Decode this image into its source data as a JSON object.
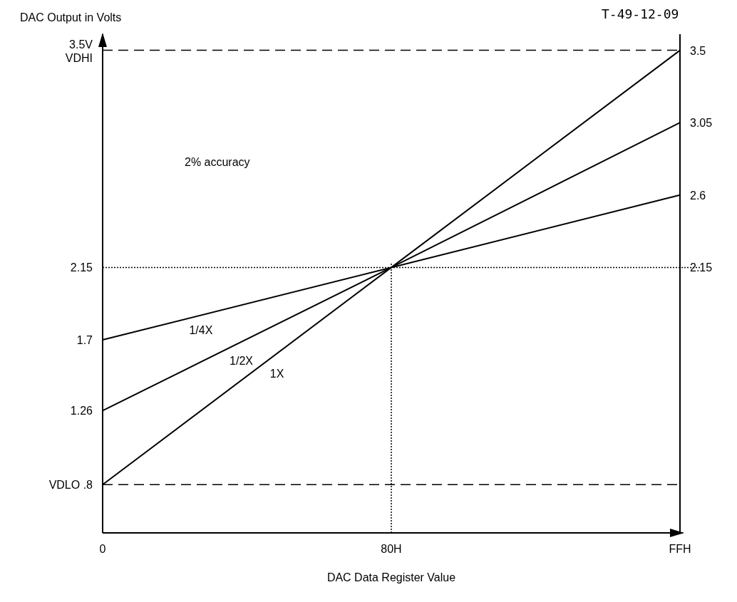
{
  "chart_data": {
    "type": "line",
    "ylabel": "DAC Output in Volts",
    "xlabel": "DAC Data Register Value",
    "categories": [
      "0",
      "80H",
      "FFH"
    ],
    "series": [
      {
        "name": "1/4X",
        "color": "#000000",
        "values": [
          1.7,
          2.15,
          2.6
        ]
      },
      {
        "name": "1/2X",
        "color": "#000000",
        "values": [
          1.26,
          2.15,
          3.05
        ]
      },
      {
        "name": "1X",
        "color": "#000000",
        "values": [
          0.8,
          2.15,
          3.5
        ]
      }
    ],
    "ylim": [
      0.5,
      3.6
    ],
    "yticks": [
      {
        "value": 0.8,
        "label": "VDLO .8"
      },
      1.26,
      1.7,
      2.15,
      {
        "value": 3.5,
        "label": "3.5V\nVDHI"
      }
    ],
    "y2lim": [
      0.5,
      3.6
    ],
    "y2ticks": [
      2.15,
      2.6,
      3.05,
      3.5
    ],
    "ref_lines": [
      {
        "axis": "y",
        "value": 3.5,
        "line_style": "dashed"
      },
      {
        "axis": "y",
        "value": 0.8,
        "line_style": "dashed"
      },
      {
        "axis": "y",
        "value": 2.15,
        "line_style": "dotted"
      },
      {
        "axis": "x",
        "value": "80H",
        "line_style": "dotted"
      }
    ],
    "annotations": [
      "2% accuracy",
      "T-49-12-09"
    ],
    "grid": false,
    "marker": "none",
    "line_style": "solid"
  }
}
